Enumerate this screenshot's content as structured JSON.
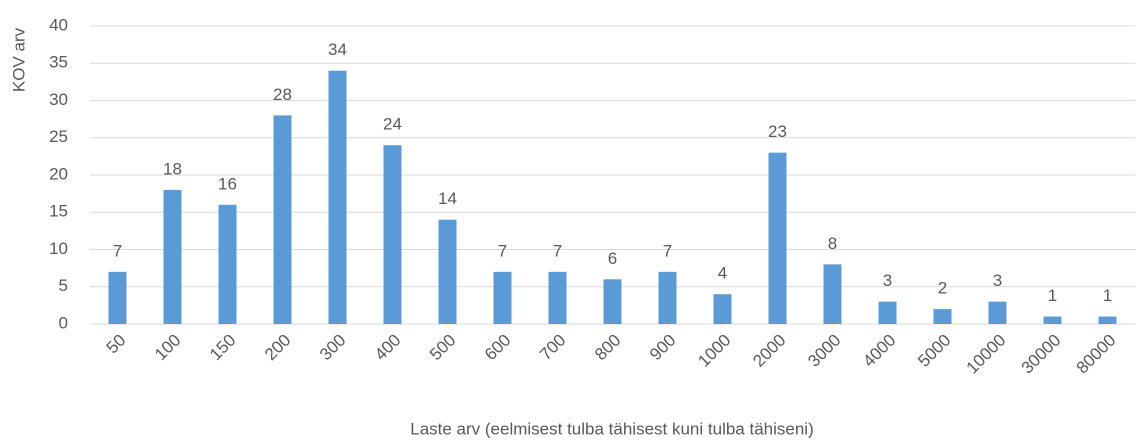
{
  "chart_data": {
    "type": "bar",
    "x_label": "Laste arv (eelmisest tulba tähisest kuni tulba tähiseni)",
    "y_label": "KOV arv",
    "categories": [
      "50",
      "100",
      "150",
      "200",
      "300",
      "400",
      "500",
      "600",
      "700",
      "800",
      "900",
      "1000",
      "2000",
      "3000",
      "4000",
      "5000",
      "10000",
      "30000",
      "80000"
    ],
    "values": [
      7,
      18,
      16,
      28,
      34,
      24,
      14,
      7,
      7,
      6,
      7,
      4,
      23,
      8,
      3,
      2,
      3,
      1,
      1
    ],
    "color": "#5b9bd5",
    "ylim": [
      0,
      40
    ],
    "yticks": [
      0,
      5,
      10,
      15,
      20,
      25,
      30,
      35,
      40
    ],
    "grid": true
  }
}
